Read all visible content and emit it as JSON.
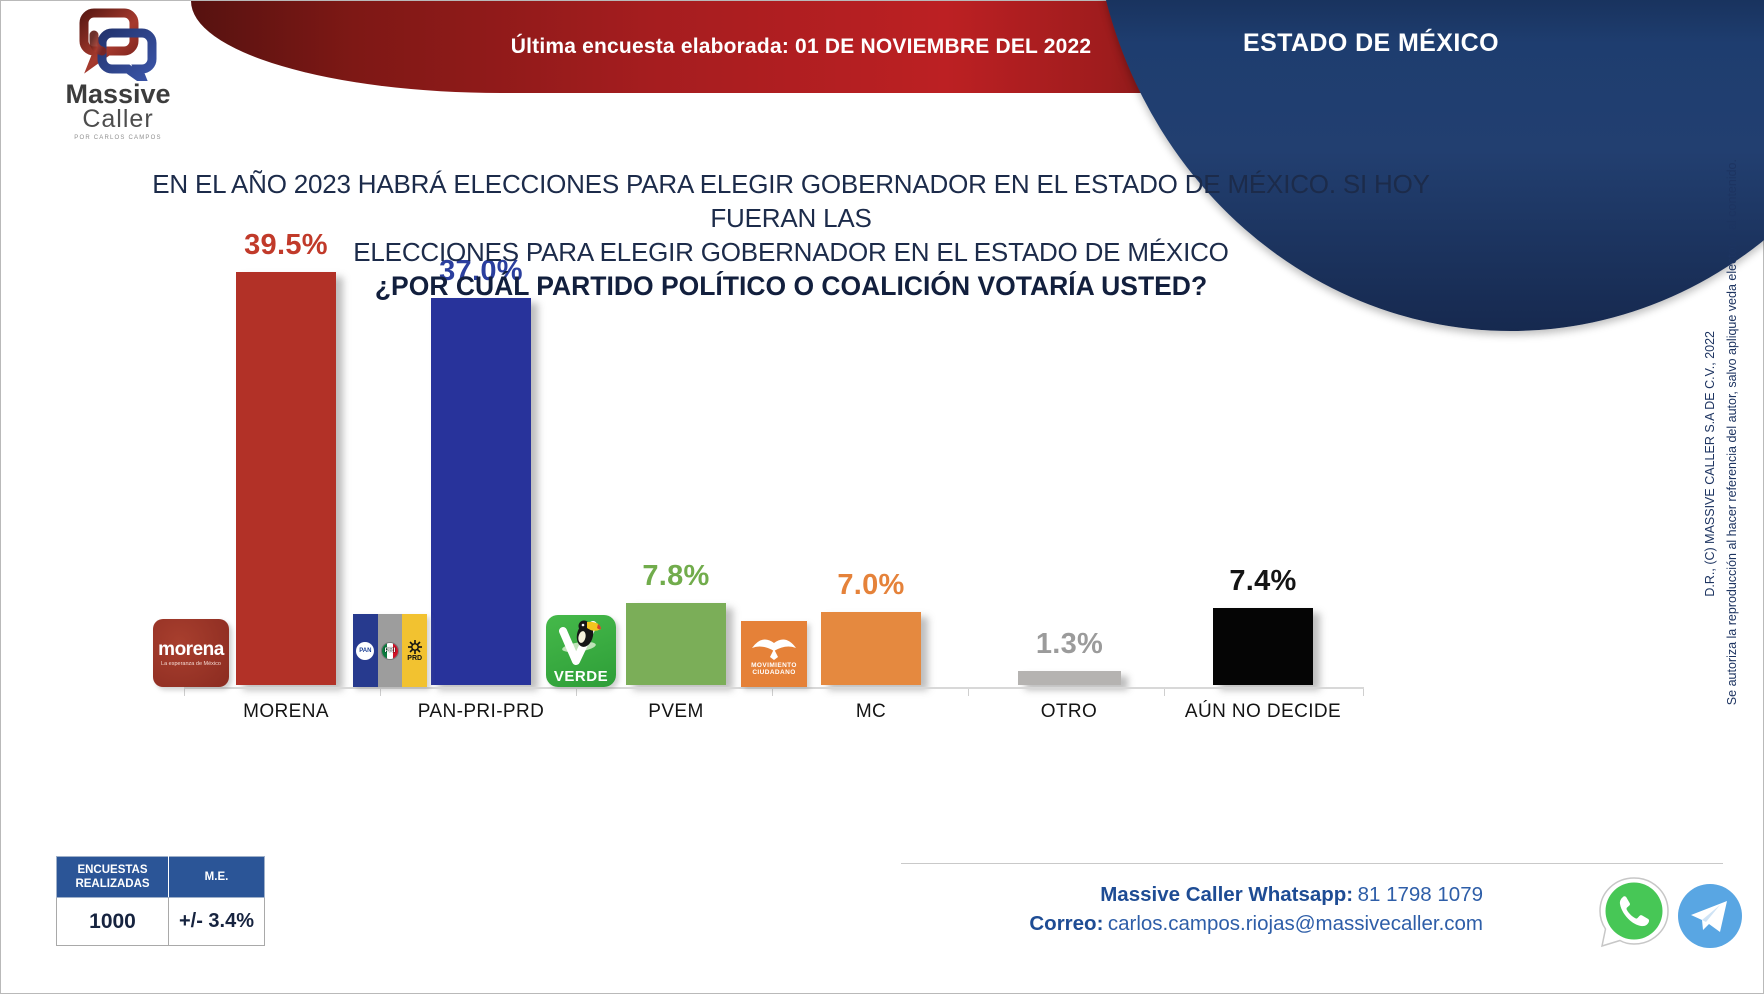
{
  "header": {
    "banner_text": "Última encuesta elaborada: 01 DE NOVIEMBRE DEL 2022",
    "region_label": "ESTADO DE MÉXICO",
    "logo": {
      "line1": "Massive",
      "line2": "Caller",
      "tagline": "POR CARLOS CAMPOS"
    }
  },
  "question": {
    "line1": "EN EL AÑO 2023 HABRÁ ELECCIONES PARA ELEGIR GOBERNADOR EN EL ESTADO DE MÉXICO. SI HOY FUERAN LAS",
    "line2": "ELECCIONES PARA ELEGIR GOBERNADOR EN EL ESTADO DE MÉXICO",
    "line3": "¿POR CUÁL PARTIDO POLÍTICO O COALICIÓN VOTARÍA USTED?"
  },
  "chart_data": {
    "type": "bar",
    "title": "EN EL AÑO 2023 HABRÁ ELECCIONES PARA ELEGIR GOBERNADOR EN EL ESTADO DE MÉXICO. SI HOY FUERAN LAS ELECCIONES PARA ELEGIR GOBERNADOR EN EL ESTADO DE MÉXICO ¿POR CUÁL PARTIDO POLÍTICO O COALICIÓN VOTARÍA USTED?",
    "categories": [
      "MORENA",
      "PAN-PRI-PRD",
      "PVEM",
      "MC",
      "OTRO",
      "AÚN NO DECIDE"
    ],
    "values": [
      39.5,
      37.0,
      7.8,
      7.0,
      1.3,
      7.4
    ],
    "value_labels": [
      "39.5%",
      "37.0%",
      "7.8%",
      "7.0%",
      "1.3%",
      "7.4%"
    ],
    "bar_colors": [
      "#b23127",
      "#28339b",
      "#7bae58",
      "#e5893f",
      "#b5b3b1",
      "#050505"
    ],
    "label_colors": [
      "#c13a2a",
      "#2b3f9e",
      "#71ac4c",
      "#e5823a",
      "#9b9b9b",
      "#141414"
    ],
    "xlabel": "",
    "ylabel": "",
    "ylim": [
      0,
      42
    ],
    "grid": false,
    "legend": null
  },
  "party_logos": {
    "morena": {
      "text": "morena",
      "tagline": "La esperanza de México"
    },
    "coalition": {
      "pan": "PAN",
      "pri": "PRI",
      "prd": "PRD"
    },
    "verde": {
      "text": "VERDE"
    },
    "mc": {
      "line1": "MOVIMIENTO",
      "line2": "CIUDADANO"
    }
  },
  "stats_table": {
    "headers": [
      "ENCUESTAS REALIZADAS",
      "M.E."
    ],
    "values": [
      "1000",
      "+/- 3.4%"
    ]
  },
  "contact": {
    "whatsapp_label": "Massive Caller Whatsapp:",
    "whatsapp_number": "81 1798  1079",
    "email_label": "Correo:",
    "email": "carlos.campos.riojas@massivecaller.com"
  },
  "footnote": {
    "line1": "D.R., (C) MASSIVE CALLER S.A DE C.V., 2022",
    "line2": "Se autoriza la reproducción al hacer referencia del autor, salvo aplique veda electoral al contenido."
  },
  "icons": {
    "whatsapp": "whatsapp-icon",
    "telegram": "telegram-icon"
  },
  "colors": {
    "banner_red": "#a51d1f",
    "ellipse_navy": "#1e3d6f",
    "table_header_blue": "#2b5597",
    "contact_blue": "#2e5ea8",
    "question_navy": "#1c2b4a"
  }
}
